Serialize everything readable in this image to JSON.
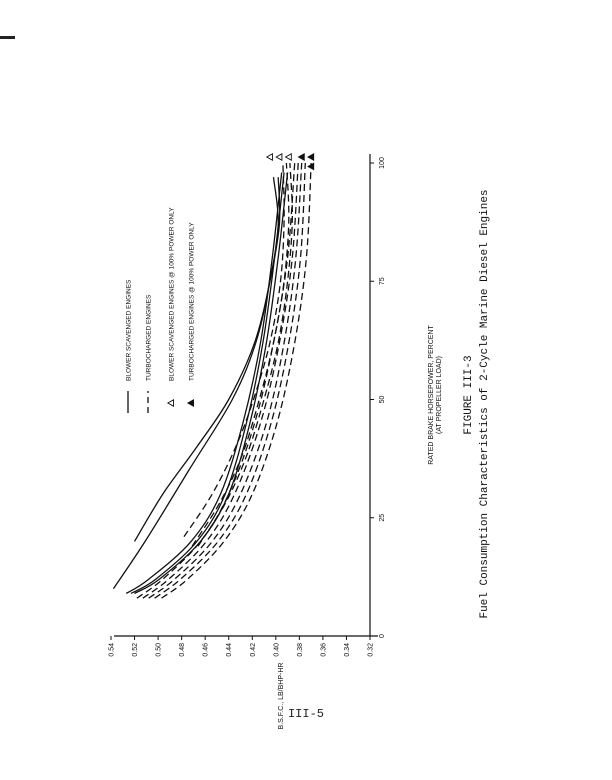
{
  "page": {
    "page_number": "III-5"
  },
  "chart_data": {
    "type": "line",
    "figure_number": "FIGURE III-3",
    "title": "Fuel Consumption Characteristics of 2-Cycle Marine Diesel Engines",
    "xlabel": "RATED BRAKE HORSEPOWER, PERCENT",
    "xlabel_sub": "(AT PROPELLER LOAD)",
    "ylabel": "B.S.F.C., LB/BHP-HR",
    "xlim": [
      0,
      100
    ],
    "ylim": [
      0.32,
      0.54
    ],
    "x_ticks": [
      "0",
      "25",
      "50",
      "75",
      "100"
    ],
    "y_ticks": [
      "0.54",
      "0.52",
      "0.50",
      "0.48",
      "0.46",
      "0.44",
      "0.42",
      "0.40",
      "0.38",
      "0.36",
      "0.34",
      "0.32"
    ],
    "legend": [
      {
        "style": "solid",
        "label": "BLOWER SCAVENGED ENGINES"
      },
      {
        "style": "dashed",
        "label": "TURBOCHARGED ENGINES"
      },
      {
        "style": "open-triangle",
        "label": "BLOWER SCAVENGED ENGINES @ 100% POWER ONLY"
      },
      {
        "style": "filled-triangle",
        "label": "TURBOCHARGED ENGINES @ 100% POWER ONLY"
      }
    ],
    "series": [
      {
        "style": "solid",
        "x": [
          10,
          20,
          35,
          50,
          62,
          75,
          87,
          97
        ],
        "y": [
          0.538,
          0.511,
          0.474,
          0.437,
          0.417,
          0.405,
          0.398,
          0.402
        ]
      },
      {
        "style": "solid",
        "x": [
          20,
          30,
          40,
          50,
          62,
          75,
          87,
          97
        ],
        "y": [
          0.52,
          0.496,
          0.467,
          0.44,
          0.418,
          0.405,
          0.397,
          0.398
        ]
      },
      {
        "style": "solid",
        "x": [
          9,
          12,
          20,
          30,
          45,
          62,
          80,
          98
        ],
        "y": [
          0.527,
          0.508,
          0.472,
          0.447,
          0.428,
          0.413,
          0.403,
          0.395
        ]
      },
      {
        "style": "solid",
        "x": [
          9,
          12,
          20,
          30,
          45,
          62,
          80,
          98
        ],
        "y": [
          0.523,
          0.502,
          0.467,
          0.443,
          0.425,
          0.411,
          0.401,
          0.393
        ]
      },
      {
        "style": "solid",
        "x": [
          9,
          12,
          20,
          30,
          45,
          62,
          80,
          98
        ],
        "y": [
          0.52,
          0.499,
          0.464,
          0.44,
          0.422,
          0.408,
          0.398,
          0.39
        ]
      },
      {
        "style": "dashed",
        "x": [
          21,
          30,
          40,
          50,
          62,
          75,
          88,
          100
        ],
        "y": [
          0.478,
          0.454,
          0.434,
          0.419,
          0.405,
          0.396,
          0.393,
          0.394
        ]
      },
      {
        "style": "dashed",
        "x": [
          19,
          28,
          38,
          50,
          62,
          75,
          88,
          100
        ],
        "y": [
          0.471,
          0.448,
          0.429,
          0.414,
          0.402,
          0.393,
          0.389,
          0.391
        ]
      },
      {
        "style": "dashed",
        "x": [
          19,
          28,
          38,
          50,
          62,
          75,
          88,
          100
        ],
        "y": [
          0.466,
          0.443,
          0.425,
          0.41,
          0.398,
          0.39,
          0.386,
          0.388
        ]
      },
      {
        "style": "dashed",
        "x": [
          8,
          12,
          20,
          30,
          45,
          62,
          80,
          100
        ],
        "y": [
          0.518,
          0.496,
          0.464,
          0.44,
          0.418,
          0.402,
          0.39,
          0.384
        ]
      },
      {
        "style": "dashed",
        "x": [
          8,
          12,
          20,
          30,
          45,
          62,
          80,
          100
        ],
        "y": [
          0.513,
          0.491,
          0.459,
          0.435,
          0.413,
          0.397,
          0.386,
          0.381
        ]
      },
      {
        "style": "dashed",
        "x": [
          8,
          12,
          20,
          30,
          45,
          62,
          80,
          100
        ],
        "y": [
          0.508,
          0.486,
          0.454,
          0.43,
          0.408,
          0.393,
          0.383,
          0.378
        ]
      },
      {
        "style": "dashed",
        "x": [
          8,
          12,
          20,
          30,
          45,
          62,
          80,
          100
        ],
        "y": [
          0.503,
          0.481,
          0.449,
          0.425,
          0.404,
          0.389,
          0.379,
          0.375
        ]
      },
      {
        "style": "dashed",
        "x": [
          8,
          12,
          20,
          30,
          45,
          62,
          80,
          100
        ],
        "y": [
          0.497,
          0.475,
          0.444,
          0.42,
          0.399,
          0.384,
          0.374,
          0.37
        ]
      }
    ],
    "markers": [
      {
        "style": "open-triangle",
        "x": 100,
        "y": 0.405
      },
      {
        "style": "open-triangle",
        "x": 100,
        "y": 0.397
      },
      {
        "style": "open-triangle",
        "x": 100,
        "y": 0.389
      },
      {
        "style": "filled-triangle",
        "x": 100,
        "y": 0.378
      },
      {
        "style": "filled-triangle",
        "x": 100,
        "y": 0.37
      },
      {
        "style": "filled-triangle",
        "x": 98,
        "y": 0.37
      }
    ]
  }
}
